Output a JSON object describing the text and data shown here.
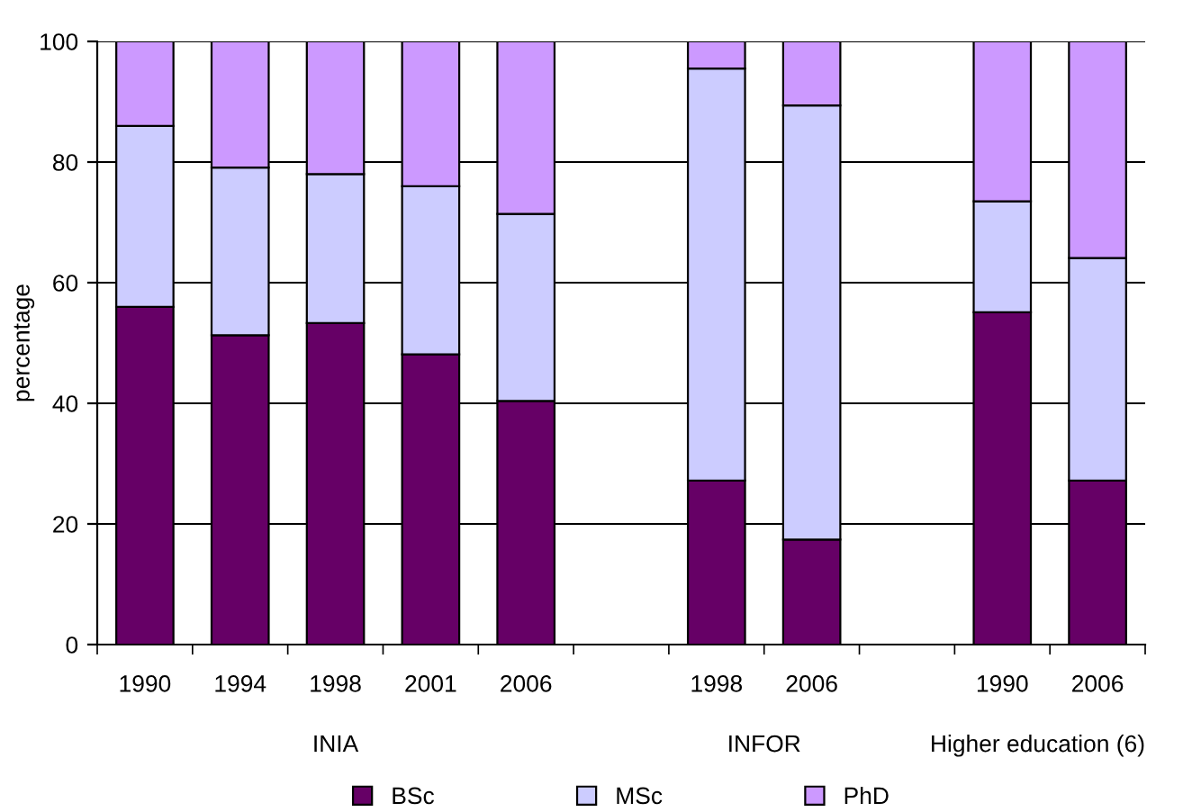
{
  "chart_data": {
    "type": "bar",
    "stacked": true,
    "ylabel": "percentage",
    "categories": [
      "1990",
      "1994",
      "1998",
      "2001",
      "2006",
      null,
      "1998",
      "2006",
      null,
      "1990",
      "2006"
    ],
    "series": [
      {
        "name": "BSc",
        "color": "#660066",
        "values": [
          56,
          51.3,
          53.3,
          48.1,
          40.4,
          null,
          27.2,
          17.4,
          null,
          55.1,
          27.2
        ]
      },
      {
        "name": "MSc",
        "color": "#ccccff",
        "values": [
          30,
          27.8,
          24.7,
          27.9,
          31,
          null,
          68.3,
          72,
          null,
          18.4,
          36.9
        ]
      },
      {
        "name": "PhD",
        "color": "#cc99ff",
        "values": [
          14,
          20.9,
          22,
          24,
          28.6,
          null,
          4.5,
          10.6,
          null,
          26.5,
          35.9
        ]
      }
    ],
    "annotations": [
      "INIA",
      "INFOR",
      "Higher education (6)"
    ],
    "ylim": [
      0,
      100
    ],
    "yticks": [
      0,
      20,
      40,
      60,
      80,
      100
    ],
    "grid": "y",
    "legend": "bottom"
  }
}
